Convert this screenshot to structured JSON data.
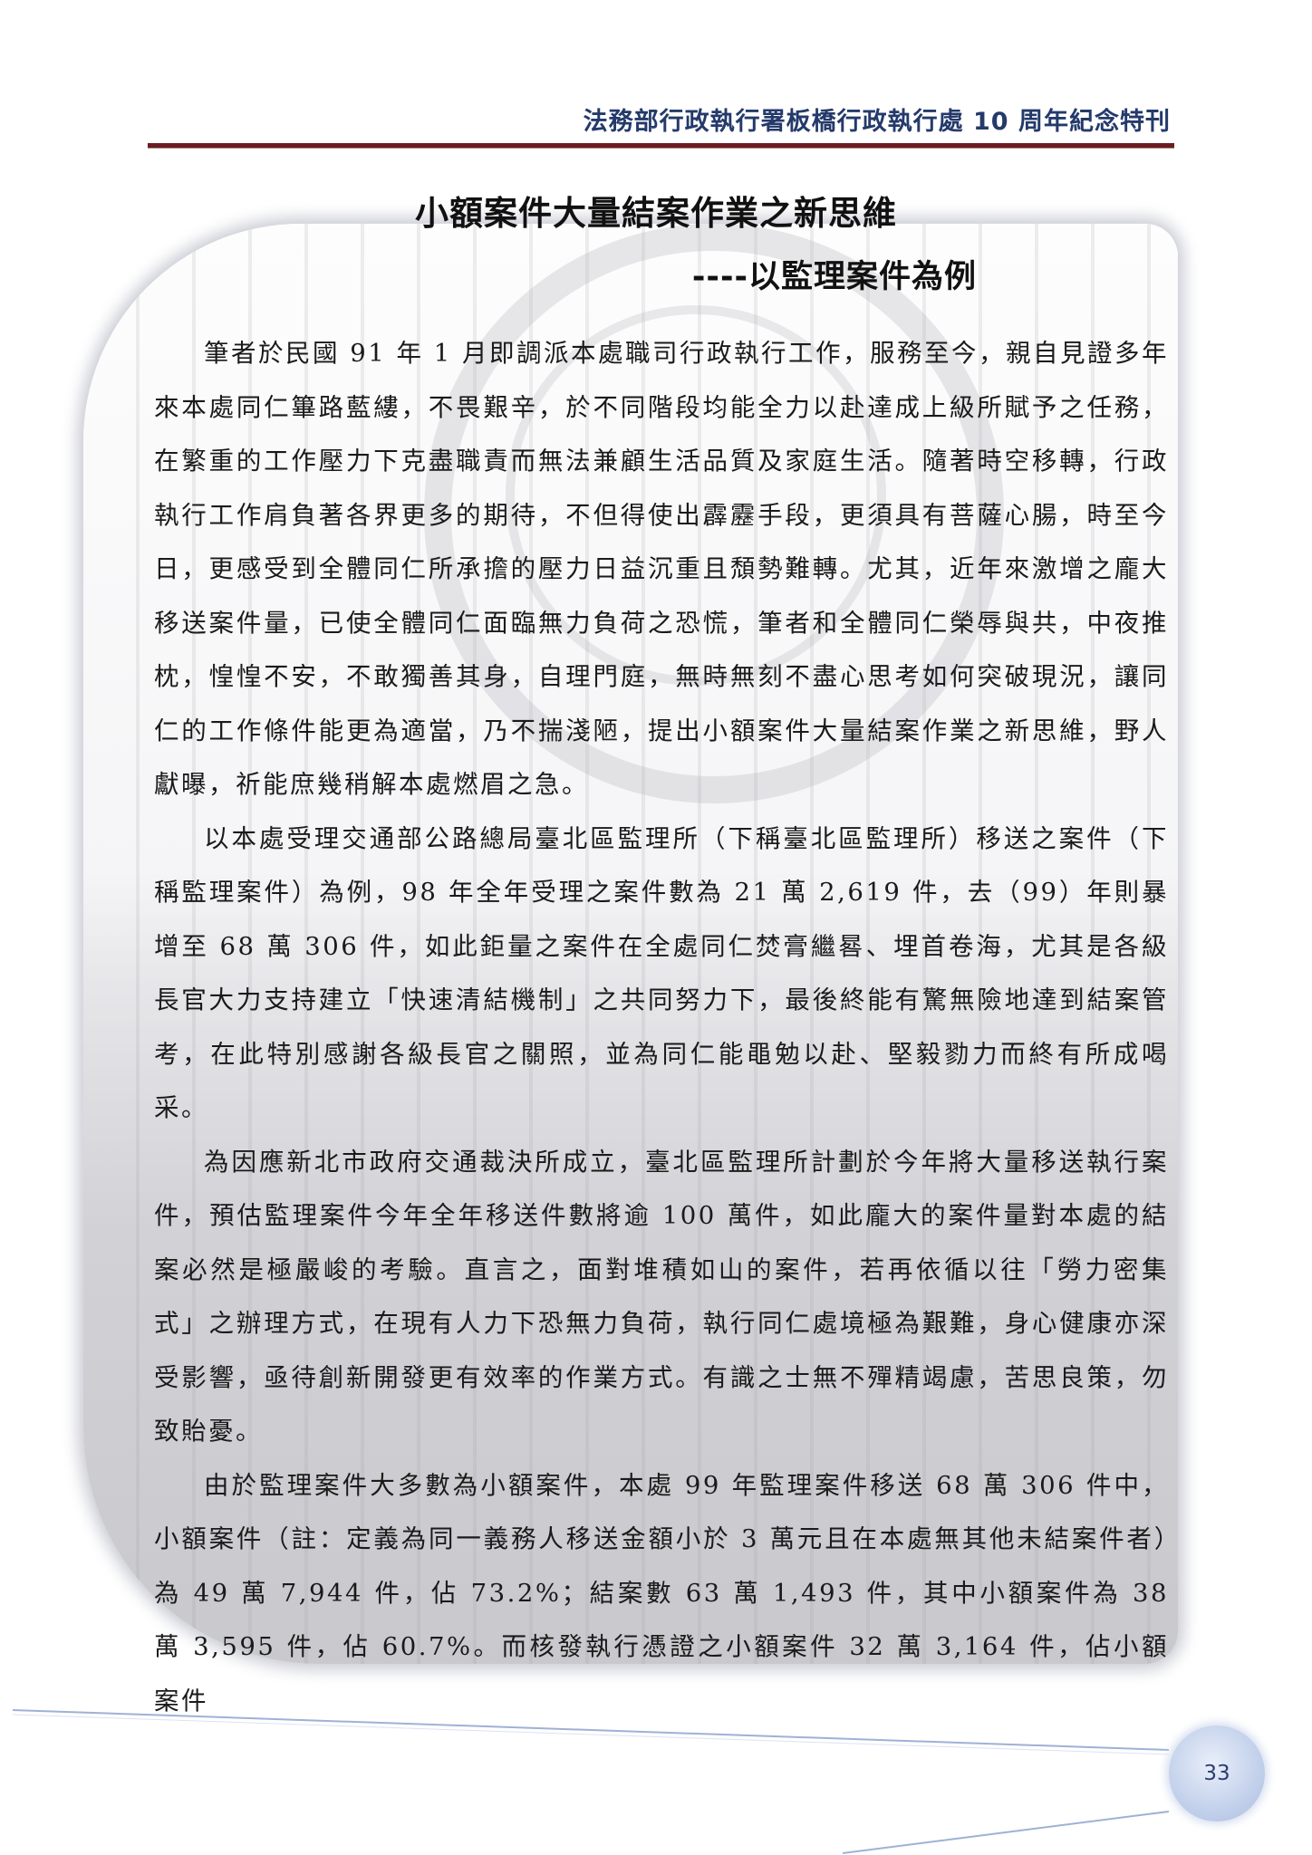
{
  "header": {
    "title": "法務部行政執行署板橋行政執行處 10 周年紀念特刊"
  },
  "article": {
    "title": "小額案件大量結案作業之新思維",
    "subtitle": "----以監理案件為例",
    "paragraphs": [
      "筆者於民國 91 年 1 月即調派本處職司行政執行工作，服務至今，親自見證多年來本處同仁篳路藍縷，不畏艱辛，於不同階段均能全力以赴達成上級所賦予之任務，在繁重的工作壓力下克盡職責而無法兼顧生活品質及家庭生活。隨著時空移轉，行政執行工作肩負著各界更多的期待，不但得使出霹靂手段，更須具有菩薩心腸，時至今日，更感受到全體同仁所承擔的壓力日益沉重且頹勢難轉。尤其，近年來激增之龐大移送案件量，已使全體同仁面臨無力負荷之恐慌，筆者和全體同仁榮辱與共，中夜推枕，惶惶不安，不敢獨善其身，自理門庭，無時無刻不盡心思考如何突破現況，讓同仁的工作條件能更為適當，乃不揣淺陋，提出小額案件大量結案作業之新思維，野人獻曝，祈能庶幾稍解本處燃眉之急。",
      "以本處受理交通部公路總局臺北區監理所（下稱臺北區監理所）移送之案件（下稱監理案件）為例，98 年全年受理之案件數為 21 萬 2,619 件，去（99）年則暴增至 68 萬 306 件，如此鉅量之案件在全處同仁焚膏繼晷、埋首卷海，尤其是各級長官大力支持建立「快速清結機制」之共同努力下，最後終能有驚無險地達到結案管考，在此特別感謝各級長官之關照，並為同仁能黽勉以赴、堅毅勠力而終有所成喝采。",
      "為因應新北市政府交通裁決所成立，臺北區監理所計劃於今年將大量移送執行案件，預估監理案件今年全年移送件數將逾 100 萬件，如此龐大的案件量對本處的結案必然是極嚴峻的考驗。直言之，面對堆積如山的案件，若再依循以往「勞力密集式」之辦理方式，在現有人力下恐無力負荷，執行同仁處境極為艱難，身心健康亦深受影響，亟待創新開發更有效率的作業方式。有識之士無不殫精竭慮，苦思良策，勿致貽憂。",
      "由於監理案件大多數為小額案件，本處 99 年監理案件移送 68 萬 306 件中，小額案件（註：定義為同一義務人移送金額小於 3 萬元且在本處無其他未結案件者）為 49 萬 7,944 件，佔 73.2%；結案數 63 萬 1,493 件，其中小額案件為 38 萬 3,595 件，佔 60.7%。而核發執行憑證之小額案件  32 萬 3,164  件，佔小額案件"
    ]
  },
  "footer": {
    "page_number": "33"
  }
}
